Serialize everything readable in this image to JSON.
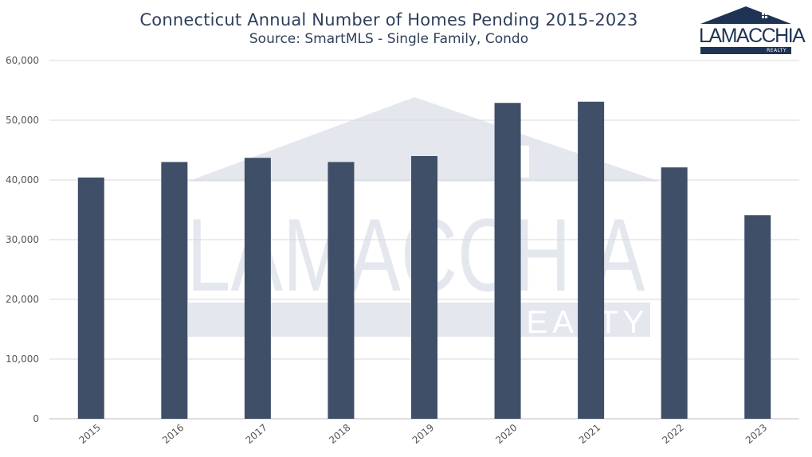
{
  "chart_data": {
    "type": "bar",
    "title": "Connecticut Annual Number of Homes Pending 2015-2023",
    "subtitle": "Source: SmartMLS - Single Family, Condo",
    "xlabel": "",
    "ylabel": "",
    "categories": [
      "2015",
      "2016",
      "2017",
      "2018",
      "2019",
      "2020",
      "2021",
      "2022",
      "2023"
    ],
    "values": [
      40400,
      43000,
      43700,
      43000,
      44000,
      52900,
      53100,
      42100,
      34100
    ],
    "ylim": [
      0,
      60000
    ],
    "yticks": [
      0,
      10000,
      20000,
      30000,
      40000,
      50000,
      60000
    ],
    "ytick_labels": [
      "0",
      "10,000",
      "20,000",
      "30,000",
      "40,000",
      "50,000",
      "60,000"
    ],
    "grid": true,
    "legend": "none",
    "bar_color": "#3f4f68",
    "grid_color": "#d9d9d9"
  },
  "logo": {
    "wordmark": "LAMACCHIA",
    "sub": "REALTY",
    "color": "#1f3354"
  },
  "watermark": {
    "wordmark": "LAMACCHIA",
    "sub": "REALTY",
    "color": "#e4e8ee"
  }
}
